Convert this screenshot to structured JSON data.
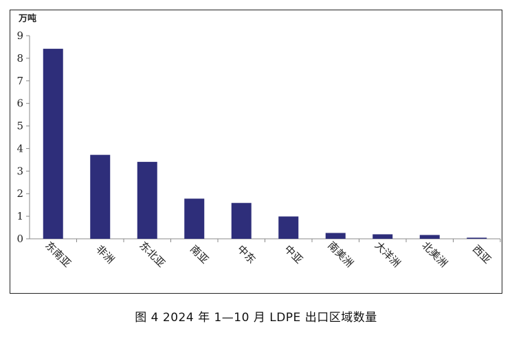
{
  "chart_data": {
    "type": "bar",
    "unit_label": "万吨",
    "categories": [
      "东南亚",
      "非洲",
      "东北亚",
      "南亚",
      "中东",
      "中亚",
      "南美洲",
      "大洋洲",
      "北美洲",
      "西亚"
    ],
    "values": [
      8.42,
      3.72,
      3.41,
      1.78,
      1.59,
      0.99,
      0.26,
      0.2,
      0.17,
      0.05
    ],
    "yticks": [
      0,
      1,
      2,
      3,
      4,
      5,
      6,
      7,
      8,
      9
    ],
    "ylim": [
      0,
      9
    ],
    "bar_color": "#2e2e7a",
    "grid": false,
    "legend": false
  },
  "caption": "图 4  2024 年 1—10 月 LDPE 出口区域数量"
}
